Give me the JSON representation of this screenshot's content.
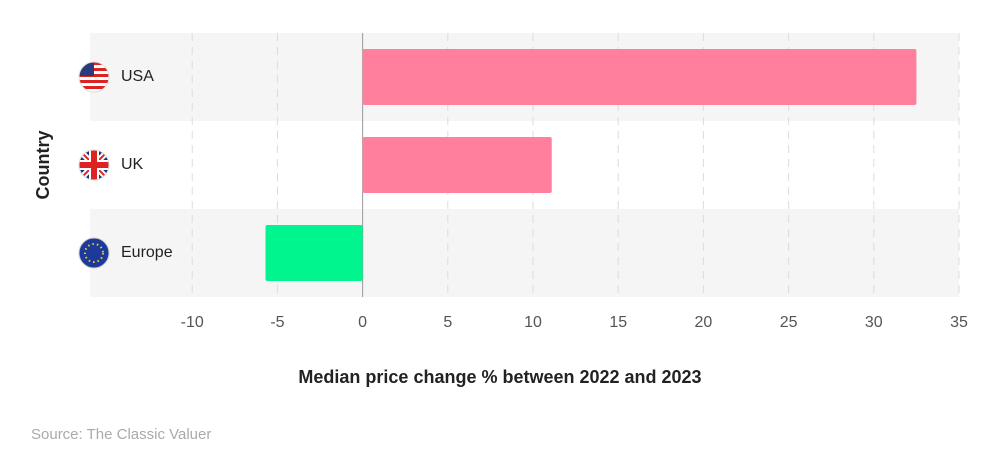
{
  "chart_data": {
    "type": "hbar",
    "categories": [
      "USA",
      "UK",
      "Europe"
    ],
    "values": [
      32.5,
      11.1,
      -5.7
    ],
    "colors": [
      "#ff7f9c",
      "#ff7f9c",
      "#00f58f"
    ],
    "xlim": [
      -16,
      35
    ],
    "xticks": [
      -10,
      -5,
      0,
      5,
      10,
      15,
      20,
      25,
      30,
      35
    ],
    "grid": true,
    "xlabel": "Median price change % between 2022 and 2023",
    "ylabel": "Country",
    "source": "Source: The Classic Valuer"
  }
}
